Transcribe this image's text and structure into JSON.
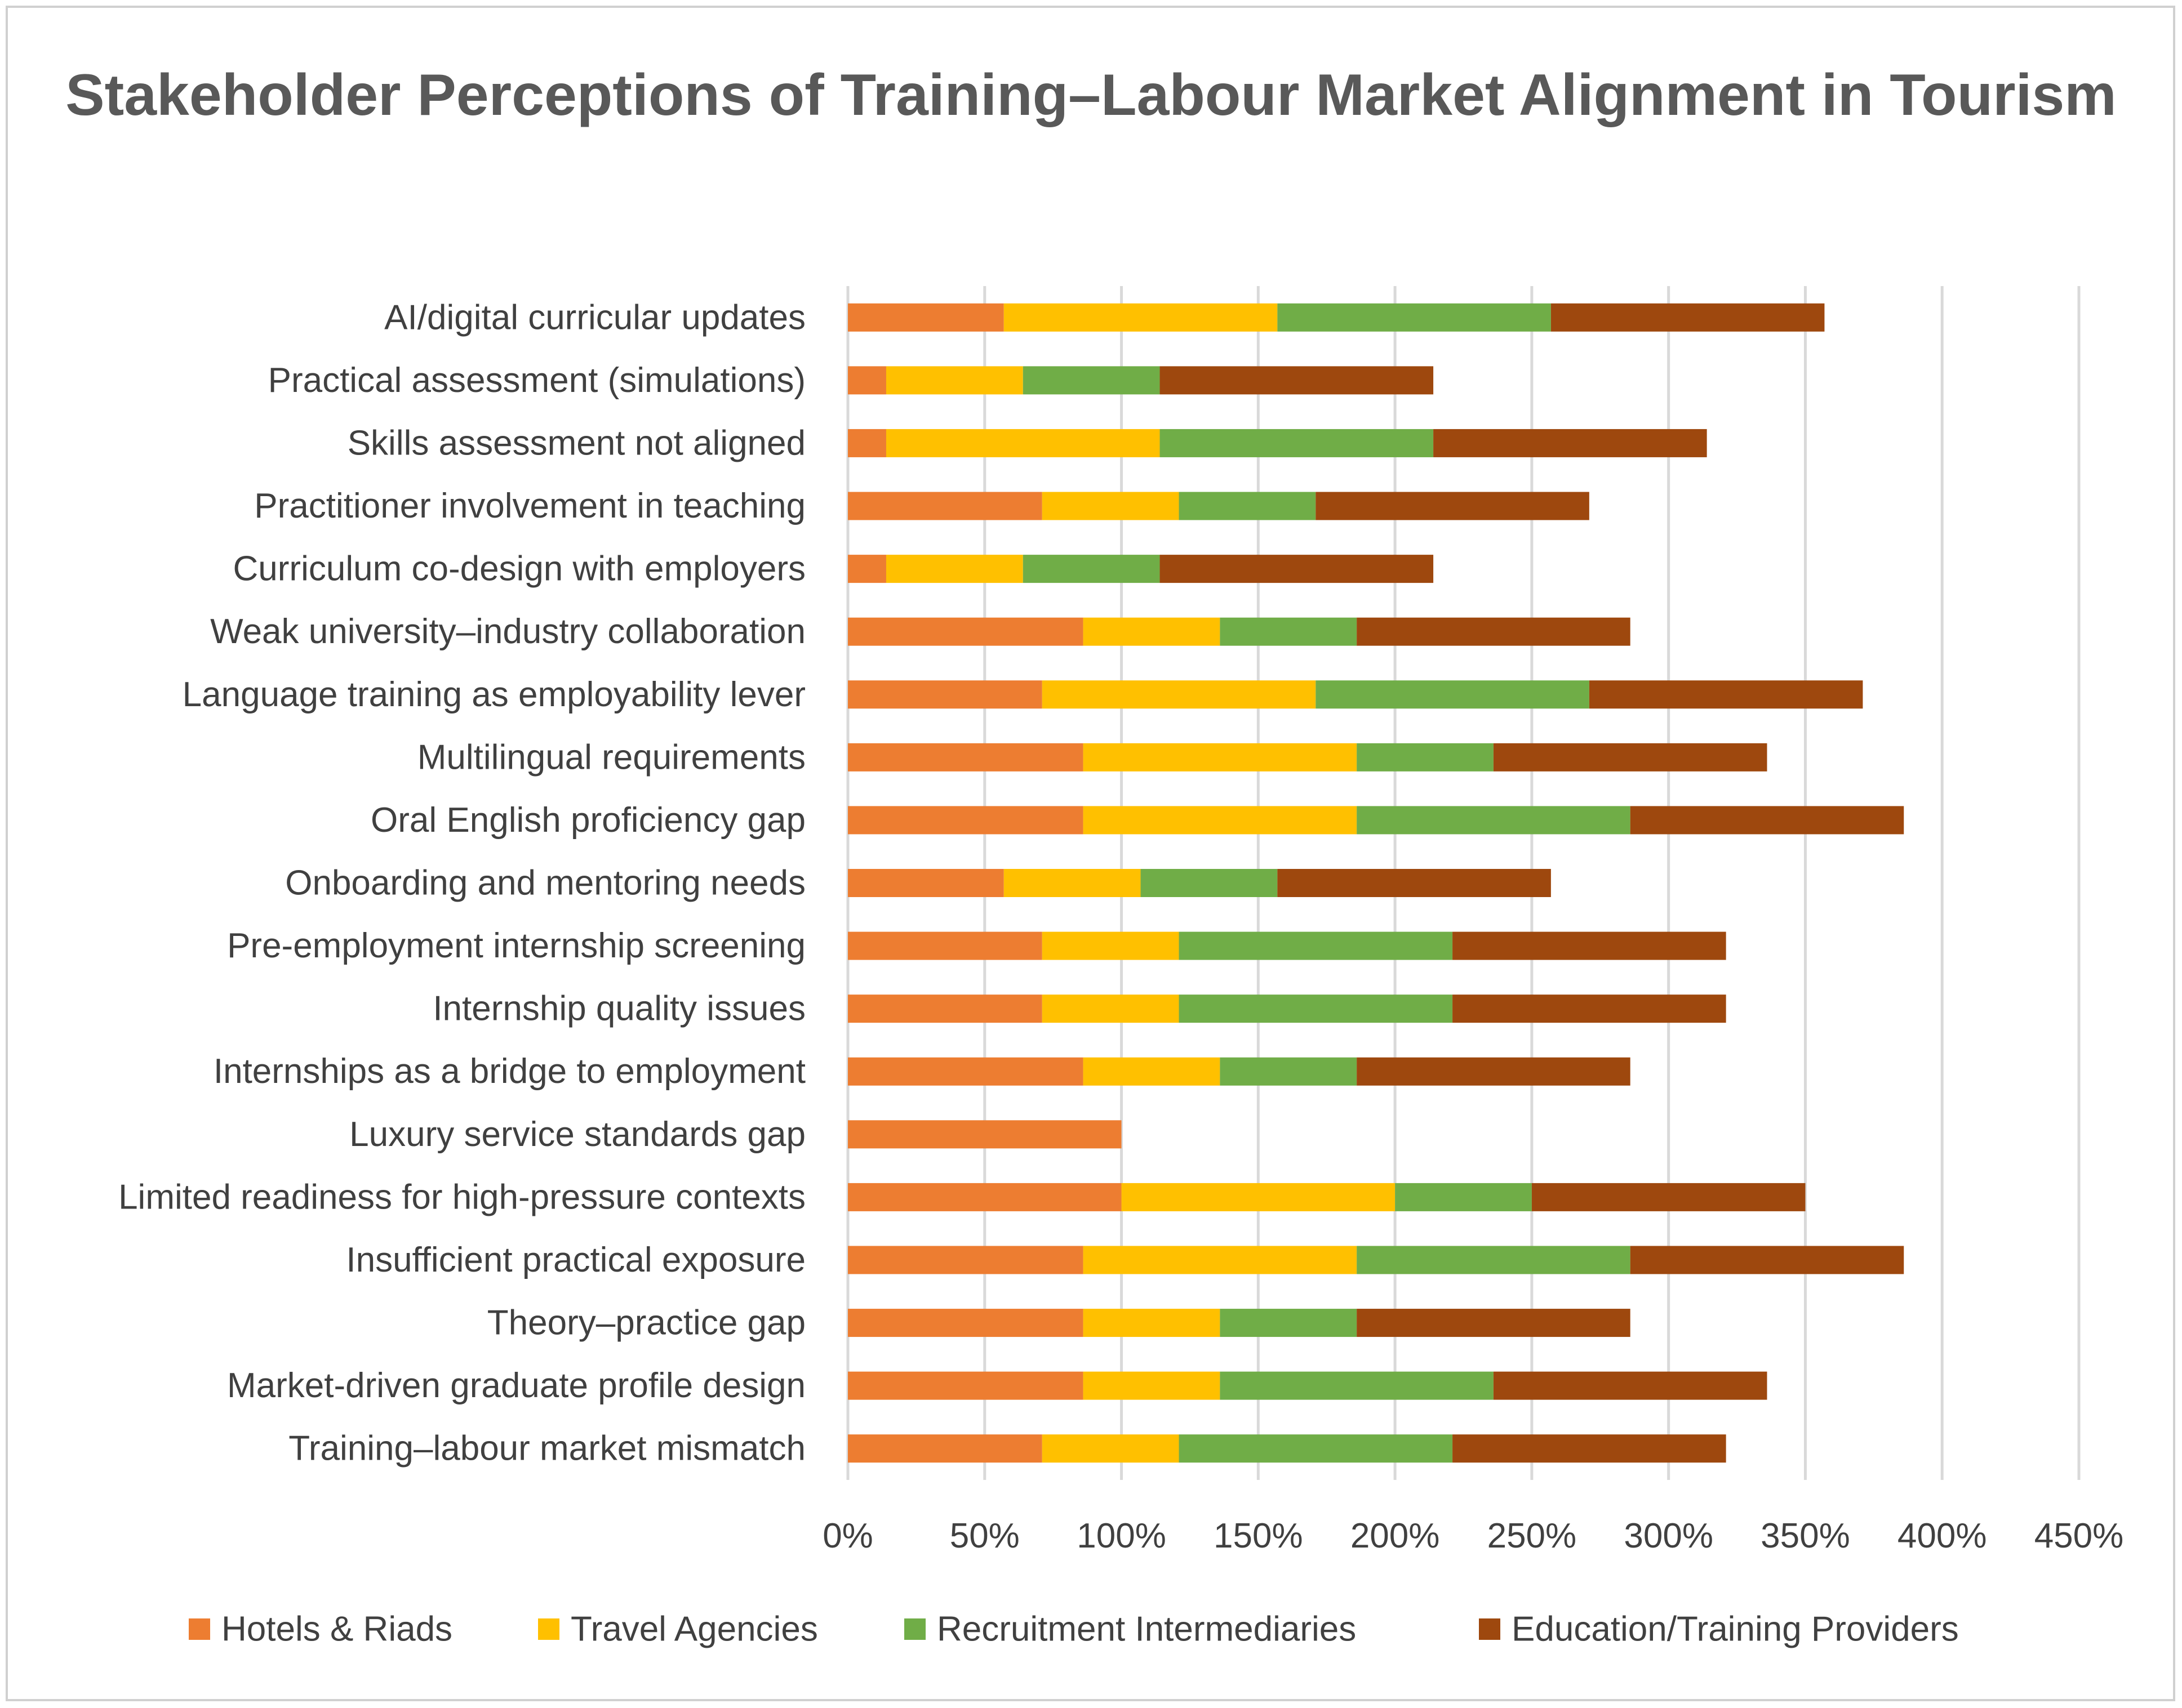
{
  "chart_data": {
    "type": "bar",
    "orientation": "horizontal",
    "stacked": true,
    "title": "Stakeholder Perceptions of Training–Labour Market Alignment in Tourism",
    "categories": [
      "AI/digital curricular updates",
      "Practical assessment (simulations)",
      "Skills assessment not aligned",
      "Practitioner involvement in teaching",
      "Curriculum co-design with employers",
      "Weak university–industry collaboration",
      "Language training as employability lever",
      "Multilingual requirements",
      "Oral English proficiency gap",
      "Onboarding and mentoring needs",
      "Pre-employment internship screening",
      "Internship quality issues",
      "Internships as a bridge to employment",
      "Luxury service standards gap",
      "Limited readiness for high-pressure contexts",
      "Insufficient practical exposure",
      "Theory–practice gap",
      "Market-driven graduate profile design",
      "Training–labour market mismatch"
    ],
    "series": [
      {
        "name": "Hotels & Riads",
        "color": "#ED7D31",
        "values": [
          57,
          14,
          14,
          71,
          14,
          86,
          71,
          86,
          86,
          57,
          71,
          71,
          86,
          100,
          100,
          86,
          86,
          86,
          71
        ]
      },
      {
        "name": "Travel Agencies",
        "color": "#FFC000",
        "values": [
          100,
          50,
          100,
          50,
          50,
          50,
          100,
          100,
          100,
          50,
          50,
          50,
          50,
          0,
          100,
          100,
          50,
          50,
          50
        ]
      },
      {
        "name": "Recruitment Intermediaries",
        "color": "#70AD47",
        "values": [
          100,
          50,
          100,
          50,
          50,
          50,
          100,
          50,
          100,
          50,
          100,
          100,
          50,
          0,
          50,
          100,
          50,
          100,
          100
        ]
      },
      {
        "name": "Education/Training Providers",
        "color": "#9E480E",
        "values": [
          100,
          100,
          100,
          100,
          100,
          100,
          100,
          100,
          100,
          100,
          100,
          100,
          100,
          0,
          100,
          100,
          100,
          100,
          100
        ]
      }
    ],
    "xlim": [
      0,
      450
    ],
    "xticks": [
      "0%",
      "50%",
      "100%",
      "150%",
      "200%",
      "250%",
      "300%",
      "350%",
      "400%",
      "450%"
    ],
    "xlabel": "",
    "ylabel": "",
    "grid": "vertical",
    "legend": "bottom"
  }
}
